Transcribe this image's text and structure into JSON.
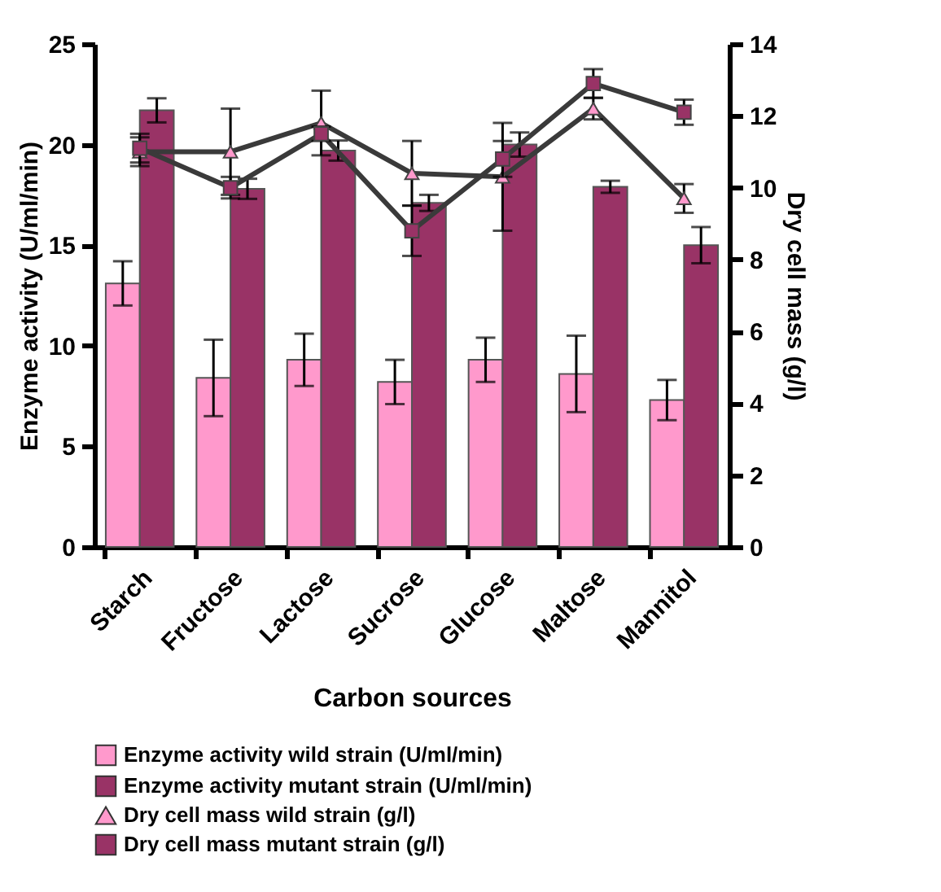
{
  "chart_data": {
    "type": "bar",
    "xlabel": "Carbon sources",
    "ylabel": "Enzyme activity (U/ml/min)",
    "y2label": "Dry cell mass (g/l)",
    "categories": [
      "Starch",
      "Fructose",
      "Lactose",
      "Sucrose",
      "Glucose",
      "Maltose",
      "Mannitol"
    ],
    "ylim": [
      0,
      25
    ],
    "yticks": [
      0,
      5,
      10,
      15,
      20,
      25
    ],
    "y2lim": [
      0,
      14
    ],
    "y2ticks": [
      0,
      2,
      4,
      6,
      8,
      10,
      12,
      14
    ],
    "grid": false,
    "legend": "bottom",
    "series": [
      {
        "name": "Enzyme activity wild strain (U/ml/min)",
        "color": "#ff99cc",
        "values": [
          13.1,
          8.4,
          9.3,
          8.2,
          9.3,
          8.6,
          7.3
        ],
        "errors": [
          1.1,
          1.9,
          1.3,
          1.1,
          1.1,
          1.9,
          1.0
        ]
      },
      {
        "name": "Enzyme activity mutant strain (U/ml/min)",
        "color": "#993366",
        "values": [
          21.7,
          17.8,
          19.7,
          17.1,
          20.0,
          17.9,
          15.0
        ],
        "errors": [
          0.6,
          0.5,
          0.5,
          0.4,
          0.6,
          0.3,
          0.9
        ]
      },
      {
        "name": "Dry cell mass wild strain (g/l)",
        "type": "line",
        "axis": "y2",
        "marker": "triangle",
        "color": "#ff99cc",
        "values": [
          11.0,
          11.0,
          11.8,
          10.4,
          10.3,
          12.2,
          9.7
        ],
        "errors": [
          0.4,
          1.2,
          0.9,
          0.9,
          1.5,
          0.3,
          0.4
        ]
      },
      {
        "name": "Dry cell mass mutant strain (g/l)",
        "type": "line",
        "axis": "y2",
        "marker": "square",
        "color": "#993366",
        "values": [
          11.1,
          10.0,
          11.5,
          8.8,
          10.8,
          12.9,
          12.1
        ],
        "errors": [
          0.4,
          0.3,
          0.2,
          0.7,
          0.5,
          0.4,
          0.35
        ]
      }
    ]
  }
}
